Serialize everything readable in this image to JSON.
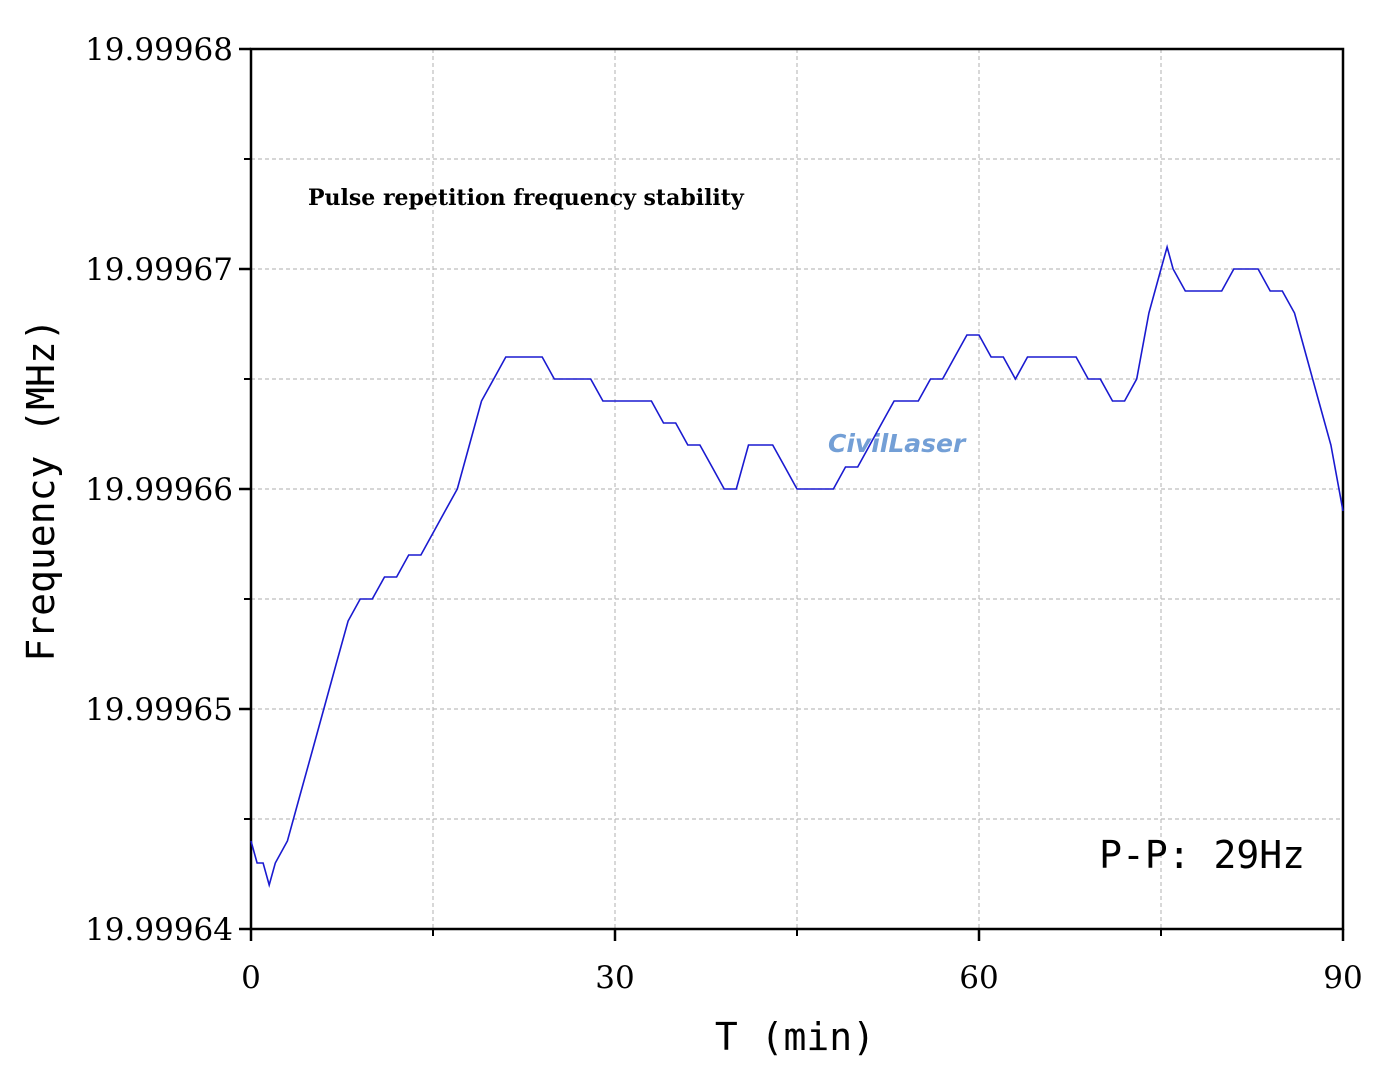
{
  "chart_data": {
    "type": "line",
    "annotation_title": "Pulse repetition frequency stability",
    "xlabel": "T (min)",
    "ylabel": "Frequency (MHz)",
    "xlim": [
      0,
      90
    ],
    "ylim": [
      19.99964,
      19.99968
    ],
    "x_ticks": [
      0,
      30,
      60,
      90
    ],
    "x_tick_labels": [
      "0",
      "30",
      "60",
      "90"
    ],
    "y_ticks": [
      19.99964,
      19.99965,
      19.99966,
      19.99967,
      19.99968
    ],
    "y_tick_labels": [
      "19.99964",
      "19.99965",
      "19.99966",
      "19.99967",
      "19.99968"
    ],
    "grid": true,
    "annotation": "P-P: 29Hz",
    "watermark": "CivilLaser",
    "line_color": "#1a1ad0",
    "series": [
      {
        "x": [
          0,
          0.5,
          1,
          1.5,
          2,
          3,
          4,
          5,
          6,
          7,
          8,
          9,
          10,
          11,
          12,
          13,
          14,
          15,
          16,
          17,
          18,
          19,
          20,
          21,
          22,
          23,
          24,
          25,
          26,
          27,
          28,
          29,
          30,
          31,
          32,
          33,
          34,
          35,
          36,
          37,
          38,
          39,
          40,
          41,
          42,
          43,
          44,
          45,
          46,
          47,
          48,
          49,
          50,
          51,
          52,
          53,
          54,
          55,
          56,
          57,
          58,
          59,
          60,
          61,
          62,
          63,
          64,
          65,
          66,
          67,
          68,
          69,
          70,
          71,
          72,
          73,
          74,
          75,
          75.5,
          76,
          77,
          78,
          79,
          80,
          81,
          82,
          83,
          84,
          85,
          86,
          87,
          88,
          89,
          90
        ],
        "y": [
          19.999644,
          19.999643,
          19.999643,
          19.999642,
          19.999643,
          19.999644,
          19.999646,
          19.999648,
          19.99965,
          19.999652,
          19.999654,
          19.999655,
          19.999655,
          19.999656,
          19.999656,
          19.999657,
          19.999657,
          19.999658,
          19.999659,
          19.99966,
          19.999662,
          19.999664,
          19.999665,
          19.999666,
          19.999666,
          19.999666,
          19.999666,
          19.999665,
          19.999665,
          19.999665,
          19.999665,
          19.999664,
          19.999664,
          19.999664,
          19.999664,
          19.999664,
          19.999663,
          19.999663,
          19.999662,
          19.999662,
          19.999661,
          19.99966,
          19.99966,
          19.999662,
          19.999662,
          19.999662,
          19.999661,
          19.99966,
          19.99966,
          19.99966,
          19.99966,
          19.999661,
          19.999661,
          19.999662,
          19.999663,
          19.999664,
          19.999664,
          19.999664,
          19.999665,
          19.999665,
          19.999666,
          19.999667,
          19.999667,
          19.999666,
          19.999666,
          19.999665,
          19.999666,
          19.999666,
          19.999666,
          19.999666,
          19.999666,
          19.999665,
          19.999665,
          19.999664,
          19.999664,
          19.999665,
          19.999668,
          19.99967,
          19.999671,
          19.99967,
          19.999669,
          19.999669,
          19.999669,
          19.999669,
          19.99967,
          19.99967,
          19.99967,
          19.999669,
          19.999669,
          19.999668,
          19.999666,
          19.999664,
          19.999662,
          19.999659
        ]
      }
    ]
  }
}
